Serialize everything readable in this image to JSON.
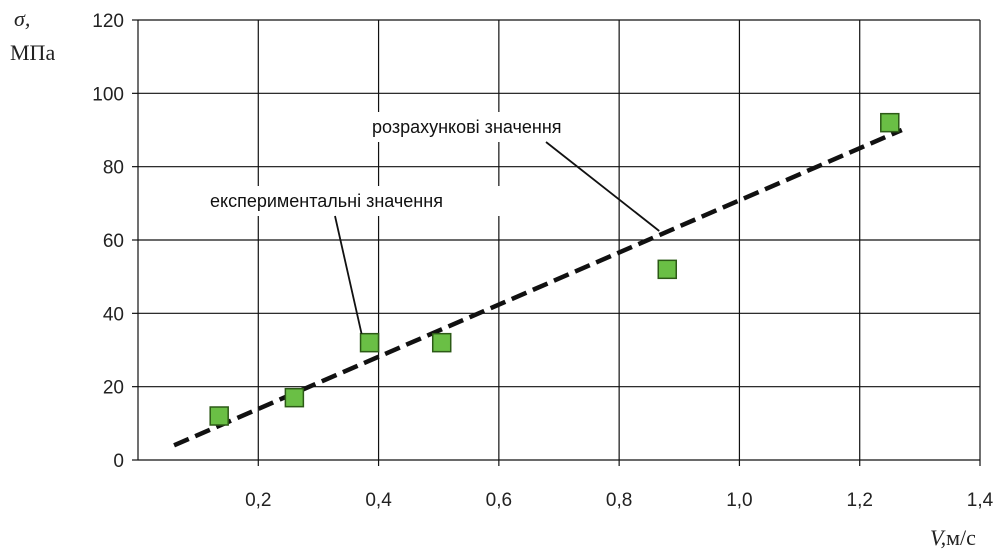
{
  "chart_data": {
    "type": "scatter",
    "xlabel_symbol": "V,",
    "xlabel_unit": "м/с",
    "ylabel_symbol": "σ,",
    "ylabel_unit": "МПа",
    "xlim": [
      0,
      1.4
    ],
    "ylim": [
      0,
      120
    ],
    "x_ticks": [
      0.2,
      0.4,
      0.6,
      0.8,
      1.0,
      1.2,
      1.4
    ],
    "x_tick_labels": [
      "0,2",
      "0,4",
      "0,6",
      "0,8",
      "1,0",
      "1,2",
      "1,4"
    ],
    "y_ticks": [
      0,
      20,
      40,
      60,
      80,
      100,
      120
    ],
    "y_tick_labels": [
      "0",
      "20",
      "40",
      "60",
      "80",
      "100",
      "120"
    ],
    "grid": true,
    "series": [
      {
        "name": "експериментальні значення",
        "marker": "square",
        "color": "#6abf45",
        "edge_color": "#2c5a16",
        "x": [
          0.135,
          0.26,
          0.385,
          0.505,
          0.88,
          1.25
        ],
        "y": [
          12,
          17,
          32,
          32,
          52,
          92
        ]
      },
      {
        "name": "розрахункові значення",
        "style": "dashed",
        "color": "#111111",
        "x": [
          0.06,
          1.27
        ],
        "y": [
          4,
          90
        ]
      }
    ],
    "annotations": [
      {
        "text": "експериментальні значення",
        "target": [
          0.385,
          32
        ]
      },
      {
        "text": "розрахункові значення",
        "target": [
          0.88,
          60
        ]
      }
    ]
  }
}
